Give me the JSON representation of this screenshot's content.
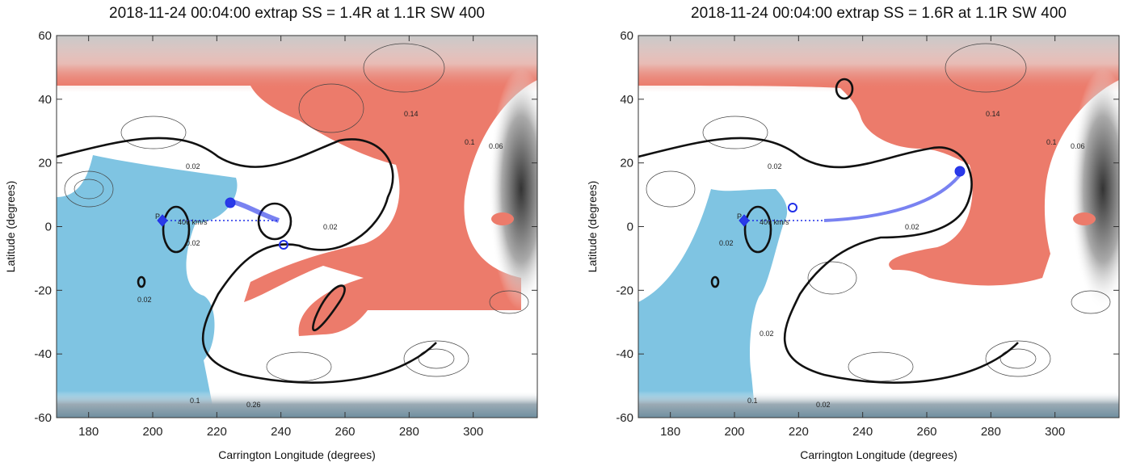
{
  "chart_data": [
    {
      "type": "contour",
      "title": "2018-11-24 00:04:00 extrap SS = 1.4R at 1.1R SW 400",
      "xlabel": "Carrington Longitude (degrees)",
      "ylabel": "Latitude (degrees)",
      "xlim": [
        170,
        320
      ],
      "ylim": [
        -60,
        60
      ],
      "xticks": [
        180,
        200,
        220,
        240,
        260,
        280,
        300
      ],
      "yticks": [
        -60,
        -40,
        -20,
        0,
        20,
        40,
        60
      ],
      "annotations": [
        "0.14",
        "0.1",
        "0.06",
        "0.02",
        "0.02",
        "0.02",
        "0.02",
        "0.1",
        "0.26",
        "400 km/s",
        "P"
      ]
    },
    {
      "type": "contour",
      "title": "2018-11-24 00:04:00 extrap SS = 1.6R at 1.1R SW 400",
      "xlabel": "Carrington Longitude (degrees)",
      "ylabel": "Latitude (degrees)",
      "xlim": [
        170,
        320
      ],
      "ylim": [
        -60,
        60
      ],
      "xticks": [
        180,
        200,
        220,
        240,
        260,
        280,
        300
      ],
      "yticks": [
        -60,
        -40,
        -20,
        0,
        20,
        40,
        60
      ],
      "annotations": [
        "0.14",
        "0.1",
        "0.06",
        "0.02",
        "0.02",
        "0.02",
        "0.02",
        "0.1",
        "0.02",
        "400 km/s",
        "P"
      ]
    }
  ]
}
